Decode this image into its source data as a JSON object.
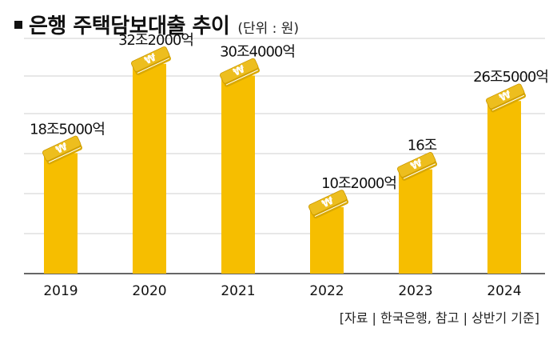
{
  "header": {
    "title": "은행 주택담보대출 추이",
    "unit": "(단위 : 원)"
  },
  "source": "[자료 | 한국은행, 참고 | 상반기 기준]",
  "colors": {
    "bar": "#F6BE00",
    "coin": "#EDBE1E",
    "coin_line": "#ffffff",
    "grid": "#cfcfcf",
    "axis": "#333333"
  },
  "chart_data": {
    "type": "bar",
    "title": "은행 주택담보대출 추이",
    "categories": [
      "2019",
      "2020",
      "2021",
      "2022",
      "2023",
      "2024"
    ],
    "values": [
      18.5,
      32.2,
      30.4,
      10.2,
      16,
      26.5
    ],
    "data_labels": [
      "18조5000억",
      "32조2000억",
      "30조4000억",
      "10조2000억",
      "16조",
      "26조5000억"
    ],
    "ylim": [
      0,
      35
    ],
    "grid": true,
    "legend": "none"
  }
}
